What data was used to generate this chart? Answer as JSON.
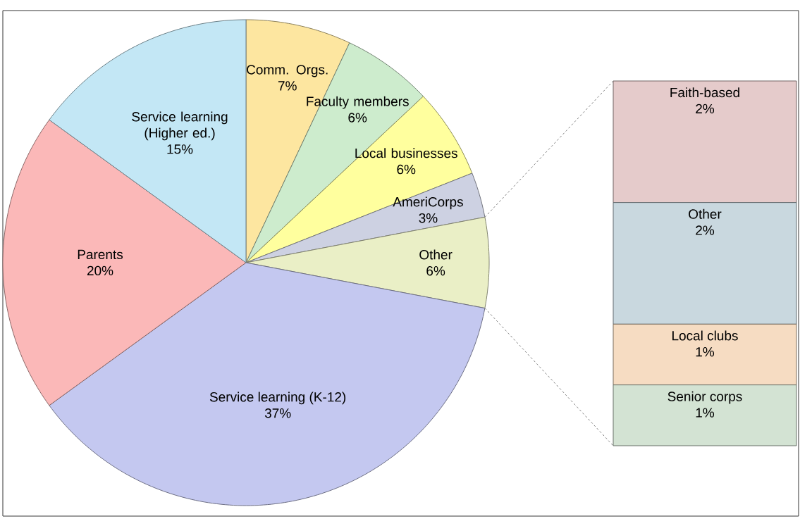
{
  "chart_data": [
    {
      "type": "pie",
      "categories": [
        "Comm. Orgs.",
        "Faculty members",
        "Local businesses",
        "AmeriCorps",
        "Other",
        "Service learning (K-12)",
        "Parents",
        "Service learning (Higher ed.)"
      ],
      "values": [
        7,
        6,
        6,
        3,
        6,
        37,
        20,
        15
      ],
      "value_labels": [
        "7%",
        "6%",
        "6%",
        "3%",
        "6%",
        "37%",
        "20%",
        "15%"
      ],
      "colors": [
        "#fde6a0",
        "#cdeccd",
        "#ffff9e",
        "#cdd1e2",
        "#eaefc6",
        "#c4c8f0",
        "#fbb8b8",
        "#c3e7f5"
      ]
    },
    {
      "type": "bar",
      "stacked": true,
      "categories": [
        null
      ],
      "series": [
        {
          "name": "Senior corps",
          "color": "#d3e3d3",
          "values": [
            1
          ],
          "value_labels": [
            "1%"
          ]
        },
        {
          "name": "Local clubs",
          "color": "#f6dcc2",
          "values": [
            1
          ],
          "value_labels": [
            "1%"
          ]
        },
        {
          "name": "Other",
          "color": "#c9d8df",
          "values": [
            2
          ],
          "value_labels": [
            "2%"
          ]
        },
        {
          "name": "Faith-based",
          "color": "#e5cbcb",
          "values": [
            2
          ],
          "value_labels": [
            "2%"
          ]
        }
      ]
    }
  ]
}
